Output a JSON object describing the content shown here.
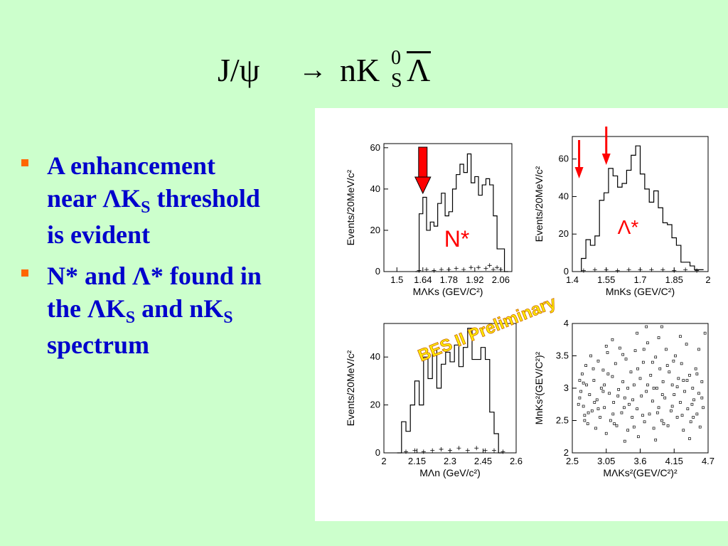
{
  "slide": {
    "title": {
      "lhs": "J/ψ",
      "arrow": "→",
      "rhs_main": "nK",
      "rhs_sup": "0",
      "rhs_sub": "S",
      "rhs_last": "Λ"
    },
    "bullets": [
      {
        "lines": [
          [
            {
              "t": "A enhancement"
            }
          ],
          [
            {
              "t": "near ΛK"
            },
            {
              "t": "S",
              "sub": true
            },
            {
              "t": " threshold"
            }
          ],
          [
            {
              "t": "is evident"
            }
          ]
        ]
      },
      {
        "lines": [
          [
            {
              "t": "N* and Λ* found in"
            }
          ],
          [
            {
              "t": "the ΛK"
            },
            {
              "t": "S",
              "sub": true
            },
            {
              "t": " and nK"
            },
            {
              "t": "S",
              "sub": true
            }
          ],
          [
            {
              "t": "spectrum"
            }
          ]
        ]
      }
    ],
    "watermark": "BES II Preliminary",
    "colors": {
      "background": "#ccffcc",
      "bullet_text": "#0000cc",
      "bullet_marker": "#ff6600",
      "annotation": "#ff0000",
      "watermark_fill": "#ffee00",
      "watermark_stroke": "#cc6600"
    }
  },
  "chart_data": [
    {
      "type": "histogram",
      "id": "lambda-ks",
      "ylabel": "Events/20MeV/c²",
      "xlabel": "MΛKs (GEV/C²)",
      "xlim": [
        1.43,
        2.12
      ],
      "ylim": [
        0,
        62
      ],
      "xticks": [
        1.5,
        1.64,
        1.78,
        1.92,
        2.06
      ],
      "xtick_labels": [
        "1.5",
        "1.64",
        "1.78",
        "1.92",
        "2.06"
      ],
      "yticks": [
        0,
        20,
        40,
        60
      ],
      "ytick_labels": [
        "0",
        "20",
        "40",
        "60"
      ],
      "x_start": 1.6,
      "bin_width": 0.02,
      "values": [
        0,
        28,
        36,
        20,
        24,
        22,
        33,
        38,
        27,
        29,
        40,
        47,
        52,
        48,
        57,
        43,
        46,
        37,
        42,
        45,
        42,
        27,
        11,
        11,
        0
      ],
      "background_points": [
        [
          1.62,
          0.5
        ],
        [
          1.66,
          1
        ],
        [
          1.7,
          0.5
        ],
        [
          1.74,
          1
        ],
        [
          1.78,
          1
        ],
        [
          1.82,
          1.5
        ],
        [
          1.86,
          1
        ],
        [
          1.9,
          2
        ],
        [
          1.94,
          2
        ],
        [
          1.98,
          1.5
        ],
        [
          2.0,
          3
        ],
        [
          2.02,
          1
        ],
        [
          2.04,
          2
        ],
        [
          2.06,
          1
        ]
      ],
      "annotations": [
        {
          "label": "N*",
          "x": 1.64,
          "color": "#ff0000"
        }
      ]
    },
    {
      "type": "histogram",
      "id": "n-ks",
      "ylabel": "Events/20MeV/c²",
      "xlabel": "MnKs (GEV/C²)",
      "xlim": [
        1.4,
        2.0
      ],
      "ylim": [
        0,
        72
      ],
      "xticks": [
        1.4,
        1.55,
        1.7,
        1.85,
        2.0
      ],
      "xtick_labels": [
        "1.4",
        "1.55",
        "1.7",
        "1.85",
        "2"
      ],
      "yticks": [
        0,
        20,
        40,
        60
      ],
      "ytick_labels": [
        "0",
        "20",
        "40",
        "60"
      ],
      "x_start": 1.44,
      "bin_width": 0.02,
      "values": [
        7,
        17,
        14,
        19,
        38,
        42,
        55,
        51,
        45,
        47,
        54,
        62,
        67,
        52,
        44,
        37,
        43,
        34,
        26,
        25,
        18,
        14,
        5,
        5,
        3,
        1,
        1
      ],
      "background_points": [
        [
          1.45,
          0.5
        ],
        [
          1.5,
          1
        ],
        [
          1.55,
          1
        ],
        [
          1.6,
          0.5
        ],
        [
          1.65,
          1
        ],
        [
          1.7,
          1
        ],
        [
          1.75,
          1
        ],
        [
          1.8,
          1
        ],
        [
          1.85,
          0.5
        ],
        [
          1.9,
          1
        ],
        [
          1.95,
          0.5
        ]
      ],
      "annotations": [
        {
          "label": "Λ*",
          "x": 1.55,
          "color": "#ff0000"
        }
      ]
    },
    {
      "type": "histogram",
      "id": "lambda-n",
      "ylabel": "Events/20MeV/c²",
      "xlabel": "MΛn (GeV/c²)",
      "xlim": [
        2.0,
        2.6
      ],
      "ylim": [
        0,
        54
      ],
      "xticks": [
        2.0,
        2.15,
        2.3,
        2.45,
        2.6
      ],
      "xtick_labels": [
        "2",
        "2.15",
        "2.3",
        "2.45",
        "2.6"
      ],
      "yticks": [
        0,
        20,
        40
      ],
      "ytick_labels": [
        "0",
        "20",
        "40"
      ],
      "x_start": 2.06,
      "bin_width": 0.02,
      "values": [
        0,
        13,
        9,
        20,
        30,
        20,
        40,
        31,
        43,
        27,
        37,
        42,
        38,
        45,
        36,
        44,
        52,
        39,
        39,
        44,
        39,
        17,
        8,
        0
      ],
      "background_points": [
        [
          2.1,
          0.5
        ],
        [
          2.14,
          1
        ],
        [
          2.18,
          0.5
        ],
        [
          2.22,
          1
        ],
        [
          2.26,
          1.5
        ],
        [
          2.3,
          1
        ],
        [
          2.34,
          2
        ],
        [
          2.38,
          1
        ],
        [
          2.42,
          2
        ],
        [
          2.46,
          1
        ],
        [
          2.5,
          1
        ],
        [
          2.54,
          0.5
        ]
      ],
      "annotations": []
    },
    {
      "type": "scatter",
      "id": "dalitz",
      "ylabel": "MnKs²(GEV/C²)²",
      "xlabel": "MΛKs²(GEV/C²)²",
      "xlim": [
        2.5,
        4.7
      ],
      "ylim": [
        2.0,
        4.0
      ],
      "xticks": [
        2.5,
        3.05,
        3.6,
        4.15,
        4.7
      ],
      "xtick_labels": [
        "2.5",
        "3.05",
        "3.6",
        "4.15",
        "4.7"
      ],
      "yticks": [
        2.0,
        2.5,
        3.0,
        3.5,
        4.0
      ],
      "ytick_labels": [
        "2",
        "2.5",
        "3",
        "3.5",
        "4"
      ],
      "points": [
        [
          2.62,
          2.85
        ],
        [
          2.66,
          3.22
        ],
        [
          2.7,
          2.58
        ],
        [
          2.64,
          2.95
        ],
        [
          2.68,
          2.72
        ],
        [
          2.72,
          3.35
        ],
        [
          2.75,
          2.45
        ],
        [
          2.73,
          3.05
        ],
        [
          2.78,
          2.9
        ],
        [
          2.8,
          3.5
        ],
        [
          2.82,
          2.65
        ],
        [
          2.85,
          3.12
        ],
        [
          2.88,
          2.38
        ],
        [
          2.9,
          2.82
        ],
        [
          2.92,
          3.42
        ],
        [
          2.95,
          2.55
        ],
        [
          2.97,
          3.0
        ],
        [
          3.0,
          3.28
        ],
        [
          3.02,
          2.7
        ],
        [
          3.05,
          2.3
        ],
        [
          3.07,
          3.55
        ],
        [
          3.1,
          2.92
        ],
        [
          3.12,
          2.5
        ],
        [
          3.15,
          3.18
        ],
        [
          3.17,
          2.78
        ],
        [
          3.2,
          3.38
        ],
        [
          3.22,
          2.42
        ],
        [
          3.25,
          2.98
        ],
        [
          3.27,
          3.62
        ],
        [
          3.3,
          2.62
        ],
        [
          3.32,
          3.1
        ],
        [
          3.35,
          2.85
        ],
        [
          3.37,
          3.45
        ],
        [
          3.4,
          2.35
        ],
        [
          3.42,
          2.75
        ],
        [
          3.45,
          3.25
        ],
        [
          3.47,
          2.55
        ],
        [
          3.5,
          3.05
        ],
        [
          3.52,
          3.58
        ],
        [
          3.55,
          2.68
        ],
        [
          3.57,
          2.25
        ],
        [
          3.6,
          3.15
        ],
        [
          3.62,
          2.88
        ],
        [
          3.65,
          3.4
        ],
        [
          3.67,
          2.48
        ],
        [
          3.7,
          2.95
        ],
        [
          3.72,
          3.7
        ],
        [
          3.75,
          2.6
        ],
        [
          3.77,
          3.2
        ],
        [
          3.8,
          2.8
        ],
        [
          3.82,
          2.38
        ],
        [
          3.85,
          3.48
        ],
        [
          3.87,
          3.0
        ],
        [
          3.9,
          2.7
        ],
        [
          3.92,
          3.3
        ],
        [
          3.95,
          2.5
        ],
        [
          3.97,
          3.1
        ],
        [
          4.0,
          2.85
        ],
        [
          4.02,
          3.6
        ],
        [
          4.05,
          2.42
        ],
        [
          4.07,
          3.25
        ],
        [
          4.1,
          2.65
        ],
        [
          4.12,
          3.05
        ],
        [
          4.15,
          2.9
        ],
        [
          4.17,
          3.5
        ],
        [
          4.2,
          2.55
        ],
        [
          4.22,
          3.15
        ],
        [
          4.25,
          2.78
        ],
        [
          4.27,
          3.38
        ],
        [
          4.3,
          2.35
        ],
        [
          4.32,
          2.95
        ],
        [
          4.35,
          3.68
        ],
        [
          4.37,
          2.68
        ],
        [
          4.4,
          3.2
        ],
        [
          4.42,
          2.48
        ],
        [
          4.45,
          3.0
        ],
        [
          4.47,
          2.82
        ],
        [
          4.5,
          3.3
        ],
        [
          4.52,
          2.6
        ],
        [
          4.55,
          2.92
        ],
        [
          4.57,
          2.4
        ],
        [
          4.6,
          3.1
        ],
        [
          4.62,
          2.7
        ],
        [
          2.68,
          3.08
        ],
        [
          2.76,
          2.62
        ],
        [
          2.84,
          3.3
        ],
        [
          2.92,
          2.68
        ],
        [
          3.0,
          2.95
        ],
        [
          3.08,
          3.22
        ],
        [
          3.16,
          2.6
        ],
        [
          3.24,
          2.88
        ],
        [
          3.32,
          3.52
        ],
        [
          3.4,
          3.0
        ],
        [
          3.48,
          2.82
        ],
        [
          3.56,
          3.3
        ],
        [
          3.64,
          2.58
        ],
        [
          3.72,
          3.05
        ],
        [
          3.8,
          3.4
        ],
        [
          3.88,
          2.62
        ],
        [
          3.96,
          2.9
        ],
        [
          4.04,
          3.35
        ],
        [
          4.12,
          2.72
        ],
        [
          4.2,
          3.02
        ],
        [
          4.28,
          2.58
        ],
        [
          4.36,
          3.12
        ],
        [
          4.44,
          2.75
        ],
        [
          4.52,
          3.22
        ],
        [
          4.6,
          2.85
        ],
        [
          2.7,
          2.5
        ],
        [
          2.86,
          2.78
        ],
        [
          3.02,
          3.05
        ],
        [
          3.18,
          2.45
        ],
        [
          3.34,
          2.7
        ],
        [
          3.5,
          2.4
        ],
        [
          3.66,
          3.6
        ],
        [
          3.82,
          3.0
        ],
        [
          3.98,
          2.45
        ],
        [
          4.14,
          3.42
        ],
        [
          4.3,
          3.12
        ],
        [
          4.46,
          2.55
        ],
        [
          3.15,
          3.75
        ],
        [
          3.55,
          3.85
        ],
        [
          3.9,
          3.78
        ],
        [
          4.25,
          3.8
        ],
        [
          3.35,
          2.18
        ],
        [
          3.85,
          2.2
        ],
        [
          4.4,
          2.22
        ],
        [
          4.65,
          3.85
        ],
        [
          3.7,
          3.95
        ],
        [
          3.95,
          3.95
        ],
        [
          3.05,
          3.65
        ],
        [
          4.55,
          3.6
        ],
        [
          2.6,
          2.75
        ],
        [
          2.62,
          3.12
        ]
      ]
    }
  ]
}
